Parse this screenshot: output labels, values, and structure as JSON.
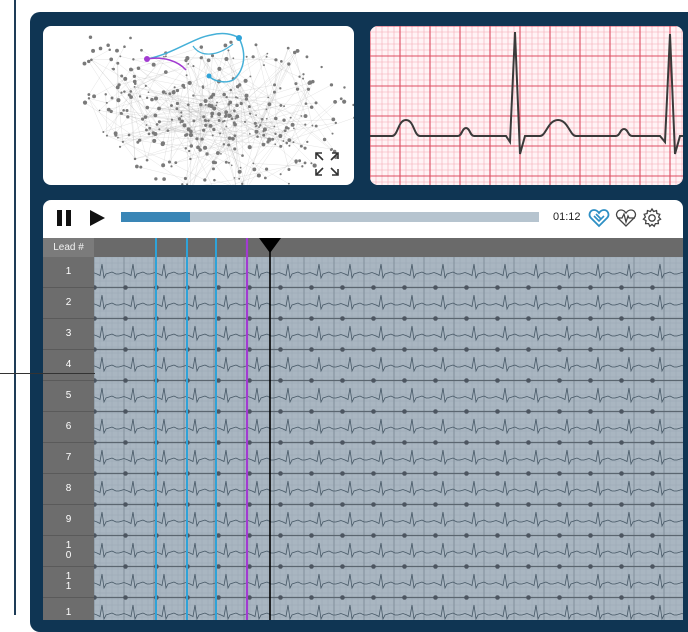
{
  "player": {
    "time": "01:12",
    "progress": 0.165,
    "accent": "#3a86b6"
  },
  "icons": {
    "pause": "pause-icon",
    "play": "play-icon",
    "expand": "expand-icon",
    "heart_link": "heart-link-icon",
    "heart_pulse": "heart-pulse-icon",
    "settings": "gear-icon"
  },
  "grid": {
    "header_label": "Lead #",
    "leads": [
      "1",
      "2",
      "3",
      "4",
      "5",
      "6",
      "7",
      "8",
      "9",
      "1\n0",
      "1\n1",
      "1"
    ],
    "markers_blue": [
      62,
      93,
      122
    ],
    "marker_purple": 153,
    "playhead": 176,
    "colors": {
      "blue": "#2fa3d8",
      "purple": "#a23bd1",
      "playhead": "#000000"
    }
  }
}
